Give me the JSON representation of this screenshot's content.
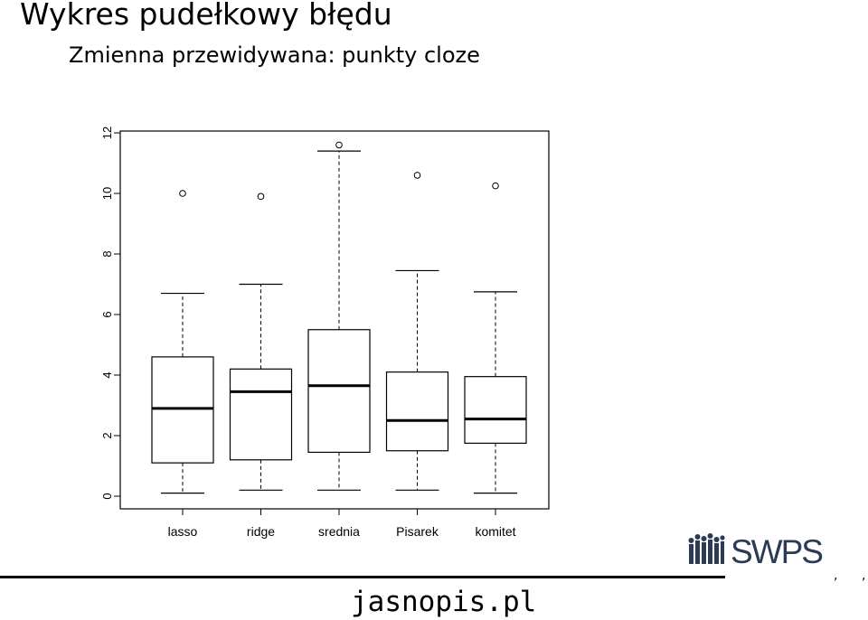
{
  "header": {
    "title": "Wykres pudełkowy błędu",
    "subtitle": "Zmienna przewidywana: punkty cloze"
  },
  "chart_data": {
    "type": "boxplot",
    "categories": [
      "lasso",
      "ridge",
      "srednia",
      "Pisarek",
      "komitet"
    ],
    "ylim": [
      0,
      12
    ],
    "yticks": [
      "0",
      "2",
      "4",
      "6",
      "8",
      "10",
      "12"
    ],
    "grid": false,
    "boxes": [
      {
        "name": "lasso",
        "whisker_low": 0.1,
        "q1": 1.1,
        "median": 2.9,
        "q3": 4.6,
        "whisker_high": 6.7,
        "outliers": [
          10.0
        ]
      },
      {
        "name": "ridge",
        "whisker_low": 0.2,
        "q1": 1.2,
        "median": 3.45,
        "q3": 4.2,
        "whisker_high": 7.0,
        "outliers": [
          9.9
        ]
      },
      {
        "name": "srednia",
        "whisker_low": 0.2,
        "q1": 1.45,
        "median": 3.65,
        "q3": 5.5,
        "whisker_high": 11.4,
        "outliers": [
          11.6
        ]
      },
      {
        "name": "Pisarek",
        "whisker_low": 0.2,
        "q1": 1.5,
        "median": 2.5,
        "q3": 4.1,
        "whisker_high": 7.45,
        "outliers": [
          10.6
        ]
      },
      {
        "name": "komitet",
        "whisker_low": 0.1,
        "q1": 1.75,
        "median": 2.55,
        "q3": 3.95,
        "whisker_high": 6.75,
        "outliers": [
          10.25
        ]
      }
    ]
  },
  "footer": {
    "text": "jasnopis.pl",
    "logo_text": "SWPS",
    "ticks": [
      ",",
      ","
    ]
  },
  "colors": {
    "ink": "#000000",
    "logo": "#2b3a55"
  }
}
